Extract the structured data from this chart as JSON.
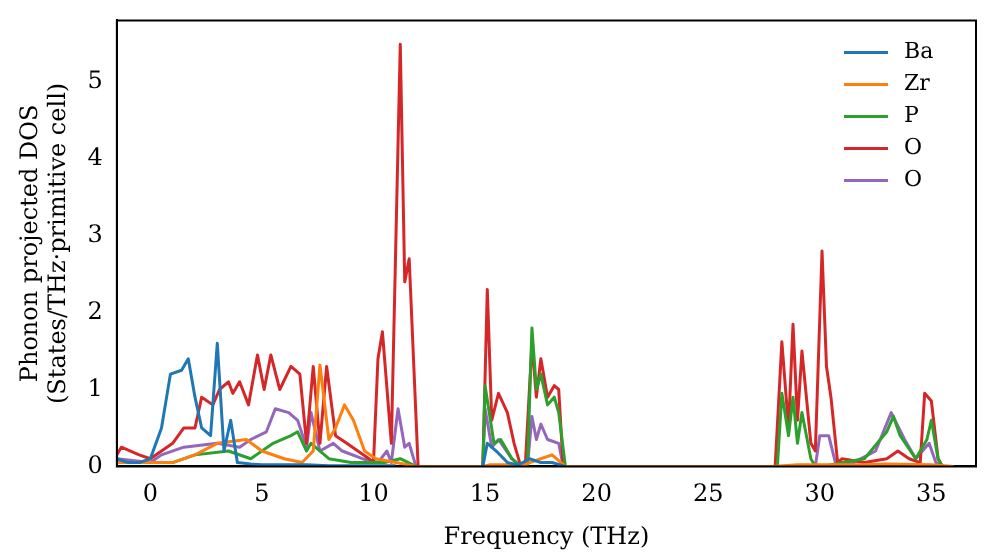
{
  "chart_data": {
    "type": "line",
    "xlabel": "Frequency (THz)",
    "ylabel": "Phonon projected DOS\n(States/THz·primitive cell)",
    "xlim": [
      -1.5,
      37
    ],
    "ylim": [
      0,
      5.8
    ],
    "xticks": [
      0,
      5,
      10,
      15,
      20,
      25,
      30,
      35
    ],
    "yticks": [
      0,
      1,
      2,
      3,
      4,
      5
    ],
    "grid": false,
    "legend": "top right",
    "marker": "none",
    "line_style": "solid",
    "series": [
      {
        "name": "Ba",
        "color": "#1f77b4",
        "x": [
          -1.5,
          -1,
          -0.5,
          0,
          0.5,
          0.9,
          1.4,
          1.7,
          2.0,
          2.3,
          2.7,
          3.0,
          3.3,
          3.6,
          3.9,
          4.5,
          5,
          6,
          7,
          8,
          9,
          10,
          11,
          11.9,
          14.9,
          15.1,
          15.5,
          16,
          16.5,
          17,
          17.5,
          18,
          18.6
        ],
        "values": [
          0.1,
          0.05,
          0.05,
          0.1,
          0.5,
          1.2,
          1.25,
          1.4,
          0.9,
          0.5,
          0.4,
          1.6,
          0.2,
          0.6,
          0.05,
          0.03,
          0.02,
          0.02,
          0.02,
          0.01,
          0.01,
          0.01,
          0.01,
          null,
          0,
          0.3,
          0.2,
          0.05,
          0.02,
          0.1,
          0.05,
          0.05,
          0
        ]
      },
      {
        "name": "Zr",
        "color": "#ff7f0e",
        "x": [
          -1.5,
          0,
          1,
          2,
          3,
          4.3,
          5,
          6,
          6.8,
          7.3,
          7.6,
          8,
          8.3,
          8.7,
          9.1,
          9.6,
          10.1,
          11,
          11.9,
          14.9,
          15.2,
          16,
          16.6,
          17,
          17.5,
          18,
          18.6,
          27.9,
          29,
          30,
          32,
          33,
          35,
          36
        ],
        "values": [
          0.05,
          0.05,
          0.05,
          0.15,
          0.3,
          0.35,
          0.2,
          0.1,
          0.05,
          0.2,
          1.32,
          0.35,
          0.5,
          0.8,
          0.6,
          0.2,
          0.1,
          0.05,
          0,
          0,
          0.02,
          0.02,
          0,
          0.05,
          0.1,
          0.15,
          0,
          0,
          0.02,
          0.02,
          0.02,
          0.03,
          0.02,
          0
        ]
      },
      {
        "name": "P",
        "color": "#2ca02c",
        "x": [
          1,
          2,
          3.5,
          4.5,
          5.5,
          6.3,
          6.6,
          7,
          7.2,
          8,
          9,
          10.5,
          11.2,
          11.9,
          14.9,
          15.0,
          15.4,
          15.7,
          16.2,
          16.6,
          16.9,
          17.1,
          17.3,
          17.5,
          17.8,
          18.1,
          18.3,
          18.6,
          28.1,
          28.3,
          28.6,
          28.8,
          29.0,
          29.2,
          29.6,
          29.8,
          30.1,
          32,
          33,
          33.3,
          33.6,
          34.3,
          34.8,
          35.0,
          35.3,
          35.5,
          36
        ],
        "values": [
          0.05,
          0.15,
          0.2,
          0.1,
          0.3,
          0.4,
          0.45,
          0.2,
          0.3,
          0.1,
          0.05,
          0.05,
          0.1,
          0,
          0,
          1.05,
          0.3,
          0.35,
          0.1,
          0,
          0,
          1.8,
          1.0,
          1.2,
          0.8,
          0.9,
          0.7,
          0,
          0,
          0.95,
          0.4,
          0.9,
          0.3,
          0.7,
          0.1,
          0,
          0,
          0.1,
          0.45,
          0.65,
          0.4,
          0.1,
          0.35,
          0.6,
          0.1,
          0,
          0
        ]
      },
      {
        "name": "O",
        "color": "#d62728",
        "x": [
          -1.5,
          -1.3,
          -0.5,
          0,
          1,
          1.5,
          2,
          2.3,
          2.8,
          3.1,
          3.5,
          3.7,
          4,
          4.4,
          4.8,
          5.1,
          5.4,
          5.8,
          6.3,
          6.7,
          7,
          7.3,
          7.6,
          7.9,
          8.3,
          8.8,
          9.3,
          9.8,
          10.0,
          10.2,
          10.4,
          10.8,
          11.2,
          11.4,
          11.6,
          12.0,
          14.9,
          15.1,
          15.3,
          15.6,
          16,
          16.3,
          16.6,
          16.8,
          17.1,
          17.3,
          17.5,
          17.8,
          18.1,
          18.3,
          18.5,
          28.0,
          28.3,
          28.6,
          28.8,
          29.0,
          29.2,
          29.6,
          29.8,
          30.1,
          30.3,
          30.5,
          30.8,
          31,
          32,
          33,
          33.5,
          34,
          34.5,
          34.7,
          35,
          35.3,
          35.5,
          36
        ],
        "values": [
          0.15,
          0.25,
          0.15,
          0.1,
          0.3,
          0.5,
          0.5,
          0.9,
          0.8,
          1.0,
          1.1,
          0.95,
          1.1,
          0.8,
          1.45,
          1.0,
          1.45,
          1.0,
          1.3,
          1.2,
          0.3,
          1.3,
          0.3,
          1.3,
          0.4,
          0.3,
          0.2,
          0.1,
          0.05,
          1.4,
          1.75,
          0.3,
          5.49,
          2.4,
          2.7,
          0,
          0,
          2.3,
          0.6,
          0.95,
          0.7,
          0.3,
          0,
          0,
          1.6,
          0.9,
          1.4,
          0.9,
          1.05,
          1.0,
          0,
          0,
          1.62,
          0.5,
          1.85,
          0.6,
          1.5,
          0.3,
          0.2,
          2.8,
          1.3,
          0.9,
          0.05,
          0.1,
          0.05,
          0.1,
          0.2,
          0.1,
          0.05,
          0.95,
          0.85,
          0.1,
          0,
          0
        ]
      },
      {
        "name": "O",
        "color": "#9467bd",
        "x": [
          -1.5,
          0,
          0.5,
          1.5,
          3,
          4,
          4.5,
          5.2,
          5.6,
          6.2,
          6.6,
          7,
          7.2,
          7.6,
          8.2,
          8.6,
          9.5,
          10.2,
          10.6,
          10.8,
          11.1,
          11.4,
          11.6,
          11.9,
          14.9,
          15.0,
          15.3,
          15.6,
          16.2,
          16.6,
          16.9,
          17.1,
          17.3,
          17.5,
          17.8,
          18.3,
          18.5,
          29.8,
          30.0,
          30.4,
          30.7,
          31.5,
          32.5,
          33.2,
          33.8,
          34.3,
          34.9,
          35.2,
          35.5,
          36
        ],
        "values": [
          0.1,
          0.05,
          0.15,
          0.25,
          0.3,
          0.25,
          0.35,
          0.45,
          0.75,
          0.7,
          0.6,
          0.25,
          0.7,
          0.2,
          0.3,
          0.2,
          0.1,
          0.05,
          0.2,
          0.05,
          0.75,
          0.25,
          0.3,
          0,
          0,
          0.75,
          0.25,
          0.35,
          0.1,
          0,
          0,
          0.65,
          0.35,
          0.55,
          0.35,
          0.3,
          0,
          0,
          0.4,
          0.4,
          0.05,
          0.05,
          0.2,
          0.7,
          0.35,
          0.1,
          0.3,
          0.05,
          0,
          0
        ]
      }
    ]
  }
}
